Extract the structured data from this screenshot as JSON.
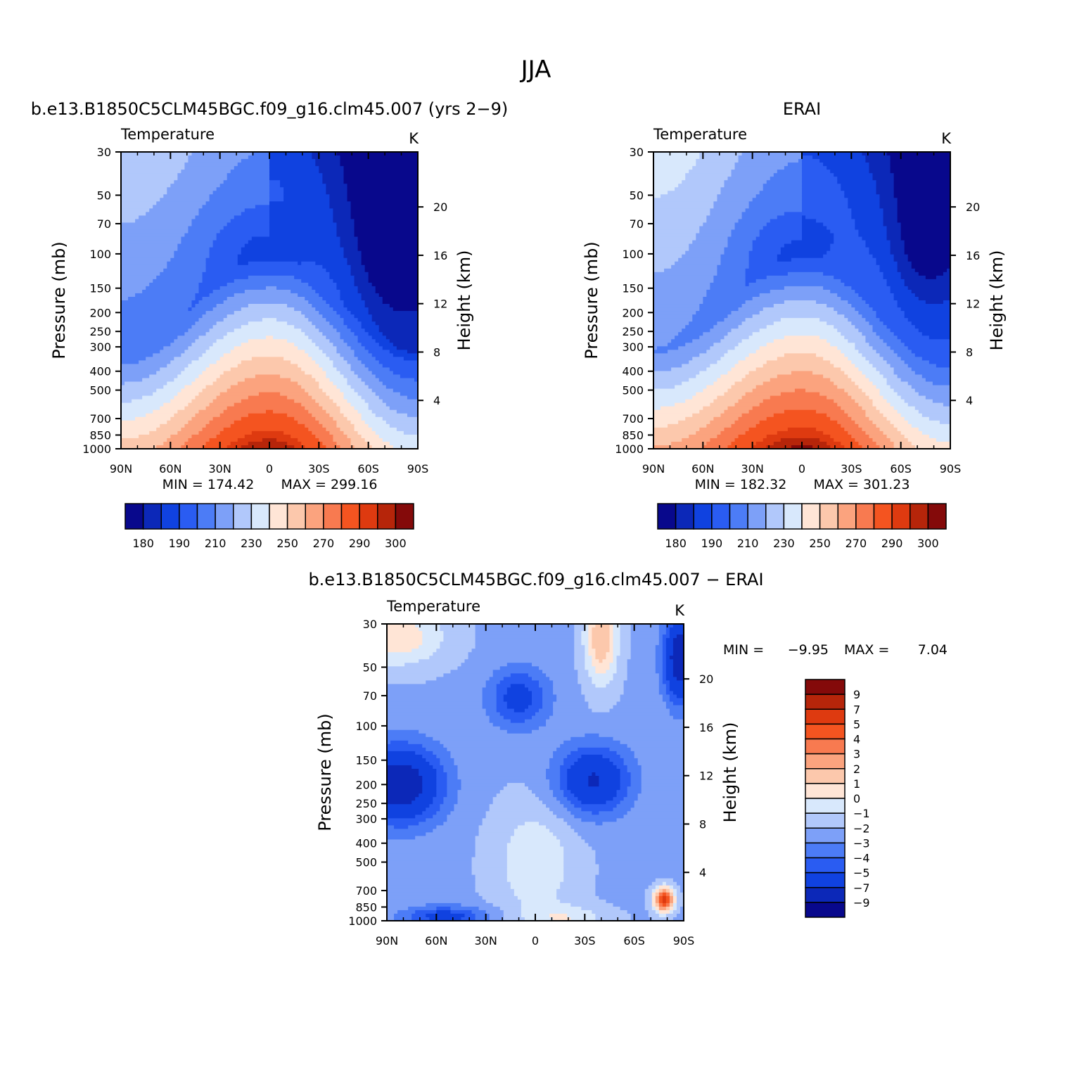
{
  "figure": {
    "title": "JJA",
    "colors": {
      "abs_palette": [
        "#08088c",
        "#0c28b8",
        "#1042e0",
        "#2a5cf2",
        "#4c7cf6",
        "#7da0f8",
        "#b1c8fb",
        "#d8e8fc",
        "#ffe5d6",
        "#fcc8ac",
        "#fba37e",
        "#f87a50",
        "#f45420",
        "#de3a10",
        "#b6250a",
        "#840a0a"
      ],
      "diff_palette": [
        "#08088c",
        "#0c28b8",
        "#1042e0",
        "#2a5cf2",
        "#4c7cf6",
        "#7da0f8",
        "#b1c8fb",
        "#d8e8fc",
        "#ffe5d6",
        "#fcc8ac",
        "#fba37e",
        "#f87a50",
        "#f45420",
        "#de3a10",
        "#b6250a",
        "#840a0a"
      ]
    }
  },
  "chart_data": [
    {
      "type": "heatmap",
      "title": "b.e13.B1850C5CLM45BGC.f09_g16.clm45.007 (yrs 2−9)",
      "left_label": "Temperature",
      "units": "K",
      "ylabel": "Pressure (mb)",
      "ylabel2": "Height (km)",
      "x_ticks": [
        "90N",
        "60N",
        "30N",
        "0",
        "30S",
        "60S",
        "90S"
      ],
      "y_ticks": [
        "30",
        "50",
        "70",
        "100",
        "150",
        "200",
        "250",
        "300",
        "400",
        "500",
        "700",
        "850",
        "1000"
      ],
      "y2_ticks": [
        "20",
        "16",
        "12",
        "8",
        "4"
      ],
      "min_label": "MIN = 174.42",
      "max_label": "MAX = 299.16",
      "colorbar_labels": [
        "180",
        "190",
        "210",
        "230",
        "250",
        "270",
        "290",
        "300"
      ],
      "contour_levels": [
        180,
        185,
        190,
        200,
        210,
        220,
        230,
        240,
        250,
        260,
        270,
        280,
        290,
        295,
        300
      ]
    },
    {
      "type": "heatmap",
      "title": "ERAI",
      "left_label": "Temperature",
      "units": "K",
      "ylabel": "Pressure (mb)",
      "ylabel2": "Height (km)",
      "x_ticks": [
        "90N",
        "60N",
        "30N",
        "0",
        "30S",
        "60S",
        "90S"
      ],
      "y_ticks": [
        "30",
        "50",
        "70",
        "100",
        "150",
        "200",
        "250",
        "300",
        "400",
        "500",
        "700",
        "850",
        "1000"
      ],
      "y2_ticks": [
        "20",
        "16",
        "12",
        "8",
        "4"
      ],
      "min_label": "MIN = 182.32",
      "max_label": "MAX = 301.23",
      "colorbar_labels": [
        "180",
        "190",
        "210",
        "230",
        "250",
        "270",
        "290",
        "300"
      ],
      "contour_levels": [
        180,
        185,
        190,
        200,
        210,
        220,
        230,
        240,
        250,
        260,
        270,
        280,
        290,
        295,
        300
      ]
    },
    {
      "type": "heatmap",
      "title": "b.e13.B1850C5CLM45BGC.f09_g16.clm45.007 − ERAI",
      "left_label": "Temperature",
      "units": "K",
      "ylabel": "Pressure (mb)",
      "ylabel2": "Height (km)",
      "x_ticks": [
        "90N",
        "60N",
        "30N",
        "0",
        "30S",
        "60S",
        "90S"
      ],
      "y_ticks": [
        "30",
        "50",
        "70",
        "100",
        "150",
        "200",
        "250",
        "300",
        "400",
        "500",
        "700",
        "850",
        "1000"
      ],
      "y2_ticks": [
        "20",
        "16",
        "12",
        "8",
        "4"
      ],
      "min_label": "MIN =",
      "min_value": "−9.95",
      "max_label": "MAX =",
      "max_value": "7.04",
      "colorbar_labels": [
        "9",
        "7",
        "5",
        "4",
        "3",
        "2",
        "1",
        "0",
        "−1",
        "−2",
        "−3",
        "−4",
        "−5",
        "−7",
        "−9"
      ],
      "contour_levels": [
        -9,
        -7,
        -5,
        -4,
        -3,
        -2,
        -1,
        0,
        1,
        2,
        3,
        4,
        5,
        7,
        9
      ]
    }
  ]
}
